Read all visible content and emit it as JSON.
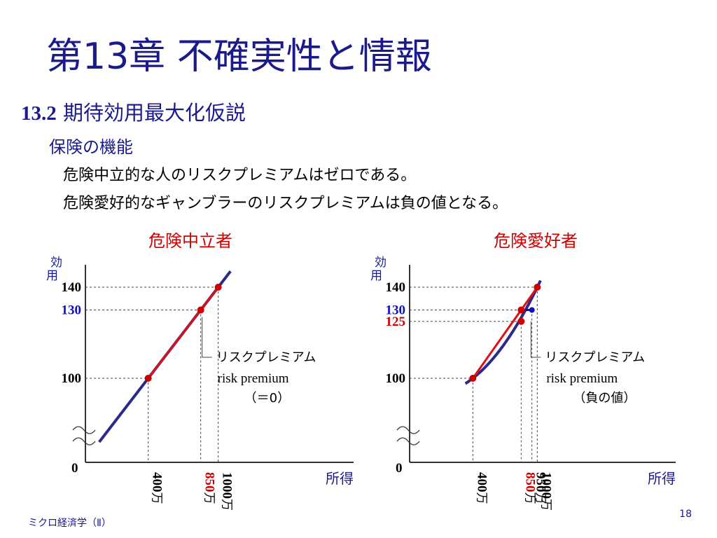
{
  "title": "第13章 不確実性と情報",
  "section": {
    "number": "13.2",
    "title": "期待効用最大化仮説"
  },
  "subsection": "保険の機能",
  "notes": [
    "危険中立的な人のリスクプレミアムはゼロである。",
    "危険愛好的なギャンブラーのリスクプレミアムは負の値となる。"
  ],
  "chart_data": [
    {
      "type": "line",
      "title": "危険中立者",
      "ylabel": "効用",
      "xlabel": "所得",
      "origin_label": "0",
      "y_ticks": [
        {
          "value": 140,
          "label": "140",
          "color": "#000000"
        },
        {
          "value": 130,
          "label": "130",
          "color": "#1010c0"
        },
        {
          "value": 100,
          "label": "100",
          "color": "#000000"
        }
      ],
      "x_ticks": [
        {
          "value": 400,
          "label": "400万",
          "parts": [
            {
              "t": "400",
              "c": "#000000"
            },
            {
              "t": "万",
              "c": "#000000"
            }
          ]
        },
        {
          "value": 850,
          "label": "850万",
          "parts": [
            {
              "t": "850",
              "c": "#cc0000"
            },
            {
              "t": "万",
              "c": "#000000"
            }
          ]
        },
        {
          "value": 1000,
          "label": "1000万",
          "parts": [
            {
              "t": "1000",
              "c": "#000000"
            },
            {
              "t": "万",
              "c": "#000000"
            }
          ]
        }
      ],
      "utility_curve": {
        "shape": "linear",
        "color": "#2a2a8a"
      },
      "chord": {
        "from": [
          400,
          100
        ],
        "to": [
          1000,
          140
        ],
        "color": "#dd1111"
      },
      "points": [
        {
          "x": 400,
          "y": 100
        },
        {
          "x": 850,
          "y": 130
        },
        {
          "x": 1000,
          "y": 140
        }
      ],
      "annotation": {
        "lines": [
          "リスクプレミアム",
          "risk premium",
          "（＝0）"
        ]
      },
      "axis_break": true
    },
    {
      "type": "line",
      "title": "危険愛好者",
      "ylabel": "効用",
      "xlabel": "所得",
      "origin_label": "0",
      "y_ticks": [
        {
          "value": 140,
          "label": "140",
          "color": "#000000"
        },
        {
          "value": 130,
          "label": "130",
          "color": "#1010c0"
        },
        {
          "value": 125,
          "label": "125",
          "color": "#cc0000"
        },
        {
          "value": 100,
          "label": "100",
          "color": "#000000"
        }
      ],
      "x_ticks": [
        {
          "value": 400,
          "label": "400万",
          "parts": [
            {
              "t": "400",
              "c": "#000000"
            },
            {
              "t": "万",
              "c": "#000000"
            }
          ]
        },
        {
          "value": 850,
          "label": "850万",
          "parts": [
            {
              "t": "850",
              "c": "#cc0000"
            },
            {
              "t": "万",
              "c": "#000000"
            }
          ]
        },
        {
          "value": 950,
          "label": "950万",
          "parts": [
            {
              "t": "950",
              "c": "#000000"
            },
            {
              "t": "万",
              "c": "#000000"
            }
          ]
        },
        {
          "value": 1000,
          "label": "1000万",
          "parts": [
            {
              "t": "1000",
              "c": "#000000"
            },
            {
              "t": "万",
              "c": "#000000"
            }
          ]
        }
      ],
      "utility_curve": {
        "shape": "convex",
        "color": "#2a2a8a"
      },
      "chord": {
        "from": [
          400,
          100
        ],
        "to": [
          1000,
          140
        ],
        "color": "#dd1111"
      },
      "points": [
        {
          "x": 400,
          "y": 100
        },
        {
          "x": 850,
          "y": 130
        },
        {
          "x": 850,
          "y": 125
        },
        {
          "x": 1000,
          "y": 140
        }
      ],
      "risk_premium_segment": {
        "from": [
          850,
          130
        ],
        "to": [
          950,
          130
        ],
        "color": "#1010c0"
      },
      "annotation": {
        "lines": [
          "リスクプレミアム",
          "risk premium",
          "（負の値）"
        ]
      },
      "axis_break": true
    }
  ],
  "footer": "ミクロ経済学（Ⅱ）",
  "page_number": "18",
  "colors": {
    "title": "#1a1a8c",
    "curve": "#2a2a8a",
    "chord": "#dd1111",
    "highlight_blue": "#1010c0",
    "highlight_red": "#cc0000"
  }
}
